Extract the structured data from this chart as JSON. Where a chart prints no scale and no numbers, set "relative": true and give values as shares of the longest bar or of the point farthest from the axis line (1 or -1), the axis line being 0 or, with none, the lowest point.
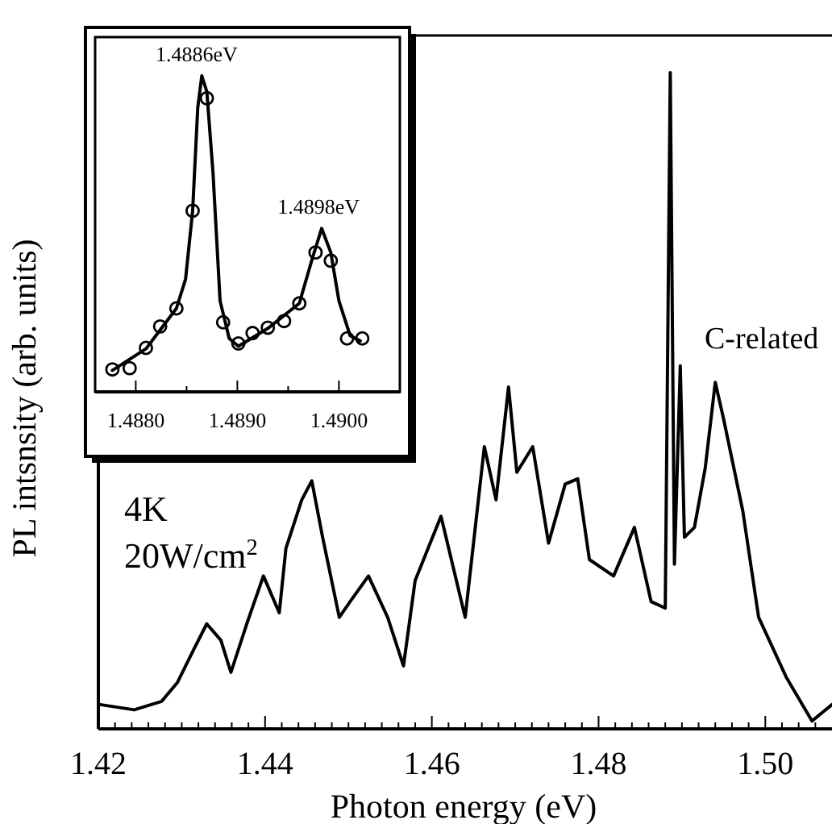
{
  "chart_data": [
    {
      "type": "line",
      "xlabel": "Photon energy (eV)",
      "ylabel": "PL intsnsity (arb. units)",
      "relative": true,
      "color": "#000000",
      "x": [
        1.4202,
        1.4243,
        1.4276,
        1.4295,
        1.4314,
        1.433,
        1.4347,
        1.4359,
        1.4378,
        1.4398,
        1.4417,
        1.4425,
        1.4444,
        1.4456,
        1.4469,
        1.4489,
        1.4502,
        1.4524,
        1.4547,
        1.4566,
        1.458,
        1.4611,
        1.464,
        1.4663,
        1.4677,
        1.4692,
        1.4702,
        1.4721,
        1.474,
        1.476,
        1.4775,
        1.4789,
        1.4818,
        1.4843,
        1.4863,
        1.488,
        1.4886,
        1.4891,
        1.4898,
        1.4903,
        1.4915,
        1.4928,
        1.494,
        1.495,
        1.4973,
        1.4992,
        1.5025,
        1.5056,
        1.508
      ],
      "values": [
        0.037,
        0.029,
        0.042,
        0.071,
        0.12,
        0.16,
        0.135,
        0.086,
        0.16,
        0.233,
        0.177,
        0.275,
        0.349,
        0.378,
        0.292,
        0.17,
        0.194,
        0.233,
        0.17,
        0.096,
        0.226,
        0.324,
        0.17,
        0.43,
        0.349,
        0.521,
        0.391,
        0.43,
        0.283,
        0.373,
        0.381,
        0.258,
        0.233,
        0.307,
        0.194,
        0.184,
        1.0,
        0.251,
        0.553,
        0.292,
        0.307,
        0.398,
        0.528,
        0.472,
        0.332,
        0.17,
        0.079,
        0.012,
        0.037
      ],
      "xlim": [
        1.42,
        1.508
      ],
      "xticks": [
        1.42,
        {
          "value": 1.422,
          "label": null
        },
        {
          "value": 1.424,
          "label": null
        },
        {
          "value": 1.426,
          "label": null
        },
        {
          "value": 1.428,
          "label": null
        },
        {
          "value": 1.43,
          "label": null
        },
        {
          "value": 1.432,
          "label": null
        },
        {
          "value": 1.434,
          "label": null
        },
        {
          "value": 1.436,
          "label": null
        },
        {
          "value": 1.438,
          "label": null
        },
        1.44,
        {
          "value": 1.442,
          "label": null
        },
        {
          "value": 1.444,
          "label": null
        },
        {
          "value": 1.446,
          "label": null
        },
        {
          "value": 1.448,
          "label": null
        },
        {
          "value": 1.45,
          "label": null
        },
        {
          "value": 1.452,
          "label": null
        },
        {
          "value": 1.454,
          "label": null
        },
        {
          "value": 1.456,
          "label": null
        },
        {
          "value": 1.458,
          "label": null
        },
        1.46,
        {
          "value": 1.462,
          "label": null
        },
        {
          "value": 1.464,
          "label": null
        },
        {
          "value": 1.466,
          "label": null
        },
        {
          "value": 1.468,
          "label": null
        },
        {
          "value": 1.47,
          "label": null
        },
        {
          "value": 1.472,
          "label": null
        },
        {
          "value": 1.474,
          "label": null
        },
        {
          "value": 1.476,
          "label": null
        },
        {
          "value": 1.478,
          "label": null
        },
        1.48,
        {
          "value": 1.482,
          "label": null
        },
        {
          "value": 1.484,
          "label": null
        },
        {
          "value": 1.486,
          "label": null
        },
        {
          "value": 1.488,
          "label": null
        },
        {
          "value": 1.49,
          "label": null
        },
        {
          "value": 1.492,
          "label": null
        },
        {
          "value": 1.494,
          "label": null
        },
        {
          "value": 1.496,
          "label": null
        },
        {
          "value": 1.498,
          "label": null
        },
        {
          "value": 1.5,
          "label": "1.50"
        },
        {
          "value": 1.502,
          "label": null
        },
        {
          "value": 1.504,
          "label": null
        },
        {
          "value": 1.506,
          "label": null
        }
      ],
      "annotations": [
        "4K",
        "20W/cm$^{2}$",
        "C-related"
      ]
    },
    {
      "type": "line",
      "relative": true,
      "series": [
        {
          "type": "scatter",
          "color": "#000000",
          "marker": "circle",
          "x": [
            1.48777,
            1.48794,
            1.4881,
            1.48824,
            1.4884,
            1.48856,
            1.4887,
            1.48886,
            1.48901,
            1.48915,
            1.4893,
            1.48946,
            1.48961,
            1.48977,
            1.48992,
            1.49008,
            1.49023
          ],
          "values": [
            0.071,
            0.075,
            0.139,
            0.207,
            0.264,
            0.573,
            0.929,
            0.22,
            0.153,
            0.186,
            0.203,
            0.224,
            0.28,
            0.441,
            0.415,
            0.169,
            0.169
          ]
        },
        {
          "color": "#000000",
          "x": [
            1.48777,
            1.4881,
            1.4884,
            1.48849,
            1.48856,
            1.48861,
            1.48865,
            1.4887,
            1.48876,
            1.48883,
            1.48892,
            1.48901,
            1.48931,
            1.48961,
            1.48974,
            1.48983,
            1.48992,
            1.49,
            1.49011,
            1.49021
          ],
          "values": [
            0.068,
            0.136,
            0.264,
            0.356,
            0.573,
            0.898,
            1.0,
            0.949,
            0.695,
            0.288,
            0.169,
            0.144,
            0.203,
            0.28,
            0.424,
            0.517,
            0.441,
            0.288,
            0.178,
            0.161
          ]
        }
      ],
      "xlim": [
        1.4876,
        1.4906
      ],
      "xticks": [
        {
          "value": 1.488,
          "label": "1.4880"
        },
        {
          "value": 1.4885,
          "label": null
        },
        {
          "value": 1.489,
          "label": "1.4890"
        },
        {
          "value": 1.4895,
          "label": null
        },
        {
          "value": 1.49,
          "label": "1.4900"
        }
      ],
      "annotations": [
        {
          "text": "1.4886eV",
          "x": 1.4886,
          "y": 1.0
        },
        {
          "text": "1.4898eV",
          "x": 1.4898,
          "y": 0.517
        }
      ]
    }
  ]
}
